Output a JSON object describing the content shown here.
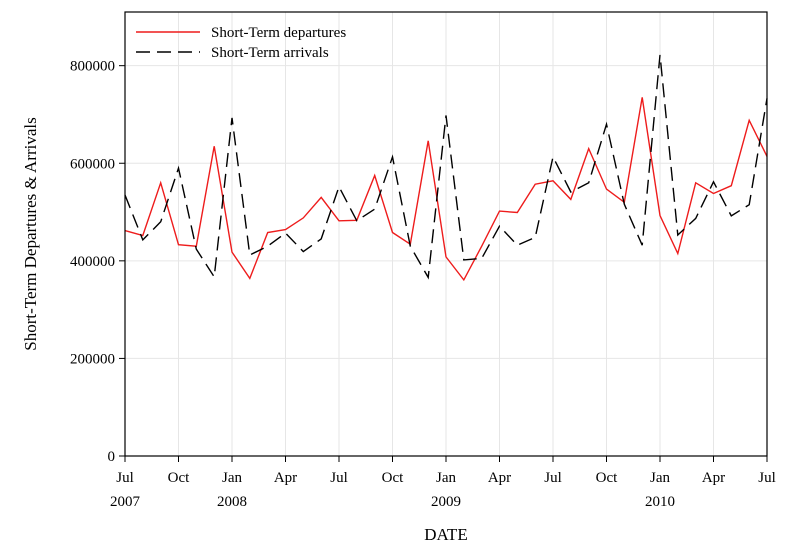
{
  "chart_data": {
    "type": "line",
    "xlabel": "DATE",
    "ylabel": "Short-Term Departures & Arrivals",
    "x_start": "2007-07",
    "x": [
      "2007-07",
      "2007-08",
      "2007-09",
      "2007-10",
      "2007-11",
      "2007-12",
      "2008-01",
      "2008-02",
      "2008-03",
      "2008-04",
      "2008-05",
      "2008-06",
      "2008-07",
      "2008-08",
      "2008-09",
      "2008-10",
      "2008-11",
      "2008-12",
      "2009-01",
      "2009-02",
      "2009-03",
      "2009-04",
      "2009-05",
      "2009-06",
      "2009-07",
      "2009-08",
      "2009-09",
      "2009-10",
      "2009-11",
      "2009-12",
      "2010-01",
      "2010-02",
      "2010-03",
      "2010-04",
      "2010-05",
      "2010-06",
      "2010-07"
    ],
    "xlim": [
      "2007-07",
      "2010-07"
    ],
    "ylim": [
      0,
      910000
    ],
    "yticks": [
      0,
      200000,
      400000,
      600000,
      800000
    ],
    "ytick_labels": [
      "0",
      "200000",
      "400000",
      "600000",
      "800000"
    ],
    "xticks": [
      {
        "month": "2007-07",
        "label": "Jul",
        "year": "2007"
      },
      {
        "month": "2007-10",
        "label": "Oct",
        "year": ""
      },
      {
        "month": "2008-01",
        "label": "Jan",
        "year": "2008"
      },
      {
        "month": "2008-04",
        "label": "Apr",
        "year": ""
      },
      {
        "month": "2008-07",
        "label": "Jul",
        "year": ""
      },
      {
        "month": "2008-10",
        "label": "Oct",
        "year": ""
      },
      {
        "month": "2009-01",
        "label": "Jan",
        "year": "2009"
      },
      {
        "month": "2009-04",
        "label": "Apr",
        "year": ""
      },
      {
        "month": "2009-07",
        "label": "Jul",
        "year": ""
      },
      {
        "month": "2009-10",
        "label": "Oct",
        "year": ""
      },
      {
        "month": "2010-01",
        "label": "Jan",
        "year": "2010"
      },
      {
        "month": "2010-04",
        "label": "Apr",
        "year": ""
      },
      {
        "month": "2010-07",
        "label": "Jul",
        "year": ""
      }
    ],
    "grid": true,
    "legend_position": "top-left",
    "series": [
      {
        "name": "Short-Term departures",
        "color": "#ee1c1c",
        "dash": "solid",
        "values": [
          462000,
          452000,
          560000,
          433000,
          430000,
          635000,
          418000,
          364000,
          458000,
          464000,
          488000,
          530000,
          482000,
          483000,
          575000,
          458000,
          434000,
          646000,
          408000,
          361000,
          430000,
          502000,
          499000,
          557000,
          564000,
          526000,
          630000,
          547000,
          520000,
          735000,
          493000,
          415000,
          560000,
          538000,
          554000,
          688000,
          614000
        ]
      },
      {
        "name": "Short-Term arrivals",
        "color": "#000000",
        "dash": "dashed",
        "values": [
          535000,
          443000,
          480000,
          590000,
          424000,
          367000,
          693000,
          412000,
          430000,
          457000,
          419000,
          445000,
          552000,
          482000,
          506000,
          613000,
          430000,
          366000,
          698000,
          402000,
          405000,
          471000,
          432000,
          448000,
          613000,
          541000,
          560000,
          680000,
          516000,
          432000,
          822000,
          453000,
          487000,
          562000,
          492000,
          515000,
          733000
        ]
      }
    ]
  }
}
